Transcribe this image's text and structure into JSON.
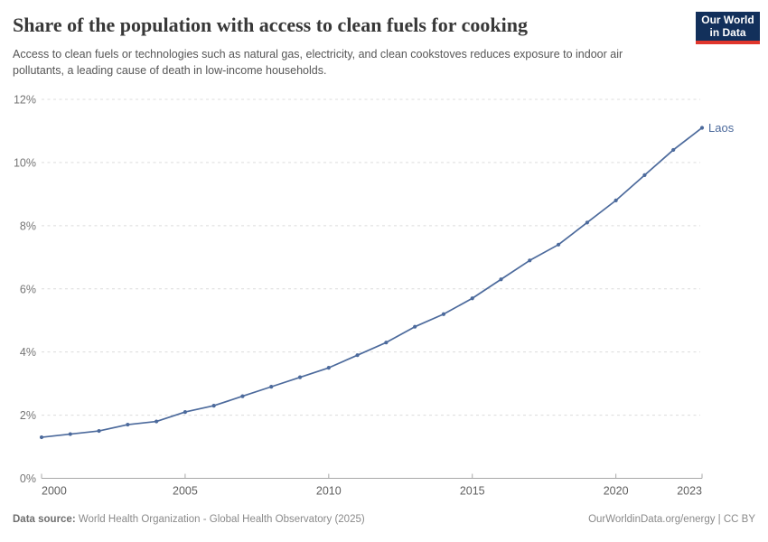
{
  "header": {
    "title": "Share of the population with access to clean fuels for cooking",
    "subtitle": "Access to clean fuels or technologies such as natural gas, electricity, and clean cookstoves reduces exposure to indoor air pollutants, a leading cause of death in low-income households.",
    "logo": {
      "line1": "Our World",
      "line2": "in Data",
      "bg_color": "#12305b",
      "accent_color": "#e0362c"
    }
  },
  "chart_data": {
    "type": "line",
    "title": "Share of the population with access to clean fuels for cooking",
    "xlabel": "",
    "ylabel": "",
    "xlim": [
      2000,
      2023
    ],
    "ylim": [
      0,
      12
    ],
    "yticks": [
      0,
      2,
      4,
      6,
      8,
      10,
      12
    ],
    "ytick_suffix": "%",
    "xticks": [
      2000,
      2005,
      2010,
      2015,
      2020,
      2023
    ],
    "grid": "horizontal-dashed",
    "legend_position": "end-of-line-label",
    "colors": {
      "line": "#4c6a9c",
      "grid": "#dcdcdc",
      "axis": "#a8a8a8",
      "ytick_label": "#757575",
      "xtick_label": "#5f5f5f"
    },
    "series": [
      {
        "name": "Laos",
        "color": "#4c6a9c",
        "x": [
          2000,
          2001,
          2002,
          2003,
          2004,
          2005,
          2006,
          2007,
          2008,
          2009,
          2010,
          2011,
          2012,
          2013,
          2014,
          2015,
          2016,
          2017,
          2018,
          2019,
          2020,
          2021,
          2022,
          2023
        ],
        "values": [
          1.3,
          1.4,
          1.5,
          1.7,
          1.8,
          2.1,
          2.3,
          2.6,
          2.9,
          3.2,
          3.5,
          3.9,
          4.3,
          4.8,
          5.2,
          5.7,
          6.3,
          6.9,
          7.4,
          8.1,
          8.8,
          9.6,
          10.4,
          11.1
        ]
      }
    ]
  },
  "footer": {
    "datasource_label": "Data source:",
    "datasource_text": " World Health Organization - Global Health Observatory (2025)",
    "credit": "OurWorldinData.org/energy | CC BY"
  }
}
